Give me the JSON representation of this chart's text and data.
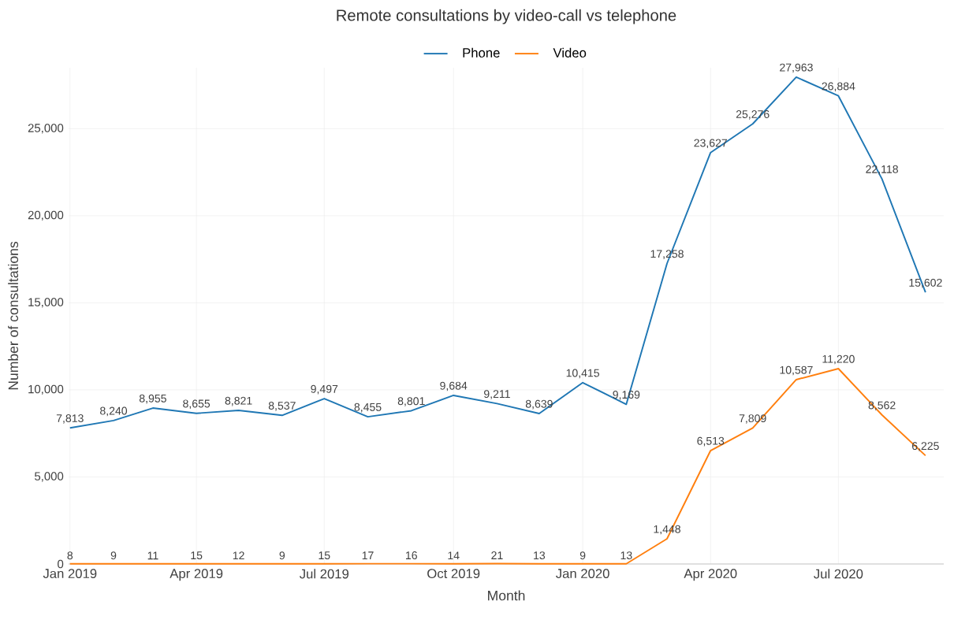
{
  "chart_data": {
    "type": "line",
    "title": "Remote consultations by video-call vs telephone",
    "xlabel": "Month",
    "ylabel": "Number of consultations",
    "x": [
      "2019-01",
      "2019-02",
      "2019-03",
      "2019-04",
      "2019-05",
      "2019-06",
      "2019-07",
      "2019-08",
      "2019-09",
      "2019-10",
      "2019-11",
      "2019-12",
      "2020-01",
      "2020-02",
      "2020-03",
      "2020-04",
      "2020-05",
      "2020-06",
      "2020-07",
      "2020-08",
      "2020-09"
    ],
    "series": [
      {
        "name": "Phone",
        "color": "#1f77b4",
        "values": [
          7813,
          8240,
          8955,
          8655,
          8821,
          8537,
          9497,
          8455,
          8801,
          9684,
          9211,
          8639,
          10415,
          9169,
          17258,
          23627,
          25276,
          27963,
          26884,
          22118,
          15602
        ],
        "value_labels": [
          "7,813",
          "8,240",
          "8,955",
          "8,655",
          "8,821",
          "8,537",
          "9,497",
          "8,455",
          "8,801",
          "9,684",
          "9,211",
          "8,639",
          "10,415",
          "9,169",
          "17,258",
          "23,627",
          "25,276",
          "27,963",
          "26,884",
          "22,118",
          "15,602"
        ]
      },
      {
        "name": "Video",
        "color": "#ff7f0e",
        "values": [
          8,
          9,
          11,
          15,
          12,
          9,
          15,
          17,
          16,
          14,
          21,
          13,
          9,
          13,
          1448,
          6513,
          7809,
          10587,
          11220,
          8562,
          6225
        ],
        "value_labels": [
          "8",
          "9",
          "11",
          "15",
          "12",
          "9",
          "15",
          "17",
          "16",
          "14",
          "21",
          "13",
          "9",
          "13",
          "1,448",
          "6,513",
          "7,809",
          "10,587",
          "11,220",
          "8,562",
          "6,225"
        ]
      }
    ],
    "xlim": [
      "2018-12-31",
      "2020-09-14"
    ],
    "ylim": [
      0,
      28500
    ],
    "xticks": [
      {
        "value": "2019-01",
        "label": "Jan 2019"
      },
      {
        "value": "2019-04",
        "label": "Apr 2019"
      },
      {
        "value": "2019-07",
        "label": "Jul 2019"
      },
      {
        "value": "2019-10",
        "label": "Oct 2019"
      },
      {
        "value": "2020-01",
        "label": "Jan 2020"
      },
      {
        "value": "2020-04",
        "label": "Apr 2020"
      },
      {
        "value": "2020-07",
        "label": "Jul 2020"
      }
    ],
    "yticks": [
      {
        "value": 0,
        "label": "0"
      },
      {
        "value": 5000,
        "label": "5,000"
      },
      {
        "value": 10000,
        "label": "10,000"
      },
      {
        "value": 15000,
        "label": "15,000"
      },
      {
        "value": 20000,
        "label": "20,000"
      },
      {
        "value": 25000,
        "label": "25,000"
      }
    ],
    "grid": true,
    "legend": "top",
    "marker": "none",
    "line_style": "solid"
  }
}
